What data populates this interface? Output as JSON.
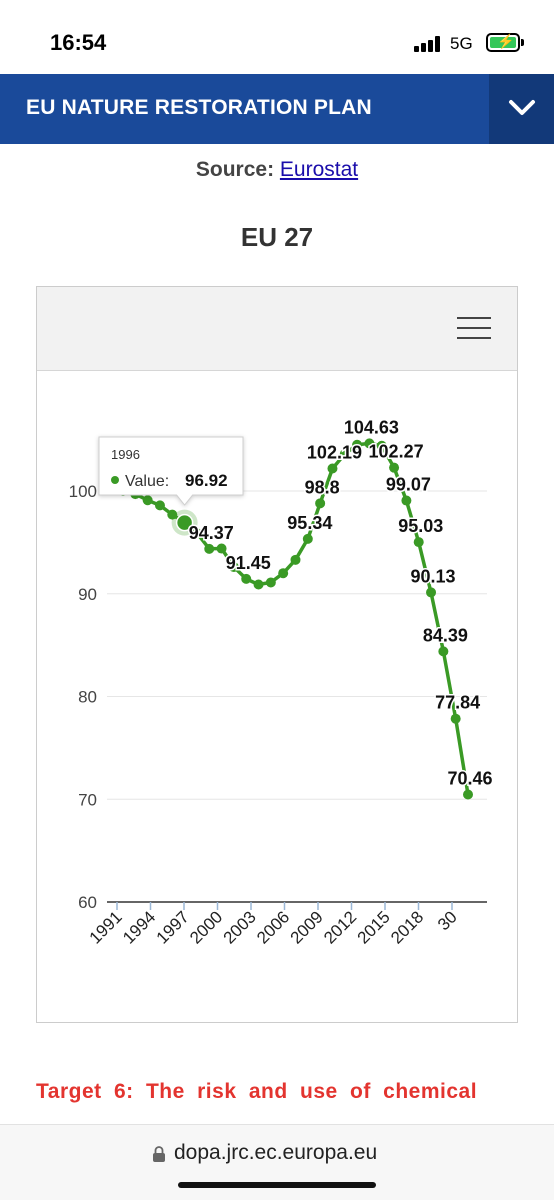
{
  "status": {
    "time": "16:54",
    "network": "5G"
  },
  "header": {
    "title": "EU NATURE RESTORATION PLAN"
  },
  "source": {
    "label": "Source:",
    "link_text": "Eurostat"
  },
  "region_title": "EU 27",
  "tooltip": {
    "year": "1996",
    "label": "Value:",
    "value": "96.92"
  },
  "target_text": "Target 6: The risk and use of chemical",
  "url": "dopa.jrc.ec.europa.eu",
  "colors": {
    "header_bg": "#1a4a9a",
    "header_toggle_bg": "#123979",
    "series": "#3a9a25",
    "target_text": "#e3342f"
  },
  "chart_data": {
    "type": "line",
    "x_tick_labels": [
      "1991",
      "1994",
      "1997",
      "2000",
      "2003",
      "2006",
      "2009",
      "2012",
      "2015",
      "2018",
      "30"
    ],
    "ylim": [
      60,
      110
    ],
    "y_ticks": [
      60,
      70,
      80,
      90,
      100
    ],
    "grid": true,
    "series": [
      {
        "points": [
          {
            "x": 1991,
            "y": 100
          },
          {
            "x": 1992,
            "y": 99.7
          },
          {
            "x": 1993,
            "y": 99.1
          },
          {
            "x": 1994,
            "y": 98.6
          },
          {
            "x": 1995,
            "y": 97.7
          },
          {
            "x": 1996,
            "y": 96.92
          },
          {
            "x": 1997,
            "y": 95.9
          },
          {
            "x": 1998,
            "y": 94.37
          },
          {
            "x": 1999,
            "y": 94.4
          },
          {
            "x": 2000,
            "y": 92.6
          },
          {
            "x": 2001,
            "y": 91.45
          },
          {
            "x": 2002,
            "y": 90.9
          },
          {
            "x": 2003,
            "y": 91.1
          },
          {
            "x": 2004,
            "y": 92
          },
          {
            "x": 2005,
            "y": 93.3
          },
          {
            "x": 2006,
            "y": 95.34
          },
          {
            "x": 2007,
            "y": 98.8
          },
          {
            "x": 2008,
            "y": 102.19
          },
          {
            "x": 2009,
            "y": 103.6
          },
          {
            "x": 2010,
            "y": 104.5
          },
          {
            "x": 2011,
            "y": 104.63
          },
          {
            "x": 2012,
            "y": 104.4
          },
          {
            "x": 2013,
            "y": 102.27
          },
          {
            "x": 2014,
            "y": 99.07
          },
          {
            "x": 2015,
            "y": 95.03
          },
          {
            "x": 2016,
            "y": 90.13
          },
          {
            "x": 2017,
            "y": 84.39
          },
          {
            "x": 2018,
            "y": 77.84
          },
          {
            "x": 2019,
            "y": 70.46
          }
        ]
      }
    ],
    "data_labels": [
      {
        "x": 1998,
        "y": 94.37,
        "text": "94.37"
      },
      {
        "x": 2001,
        "y": 91.45,
        "text": "91.45"
      },
      {
        "x": 2006,
        "y": 95.34,
        "text": "95.34"
      },
      {
        "x": 2007,
        "y": 98.8,
        "text": "98.8"
      },
      {
        "x": 2008,
        "y": 102.19,
        "text": "102.19"
      },
      {
        "x": 2011,
        "y": 104.63,
        "text": "104.63"
      },
      {
        "x": 2013,
        "y": 102.27,
        "text": "102.27"
      },
      {
        "x": 2014,
        "y": 99.07,
        "text": "99.07"
      },
      {
        "x": 2015,
        "y": 95.03,
        "text": "95.03"
      },
      {
        "x": 2016,
        "y": 90.13,
        "text": "90.13"
      },
      {
        "x": 2017,
        "y": 84.39,
        "text": "84.39"
      },
      {
        "x": 2018,
        "y": 77.84,
        "text": "77.84"
      },
      {
        "x": 2019,
        "y": 70.46,
        "text": "70.46"
      }
    ],
    "highlighted_x": 1996
  }
}
